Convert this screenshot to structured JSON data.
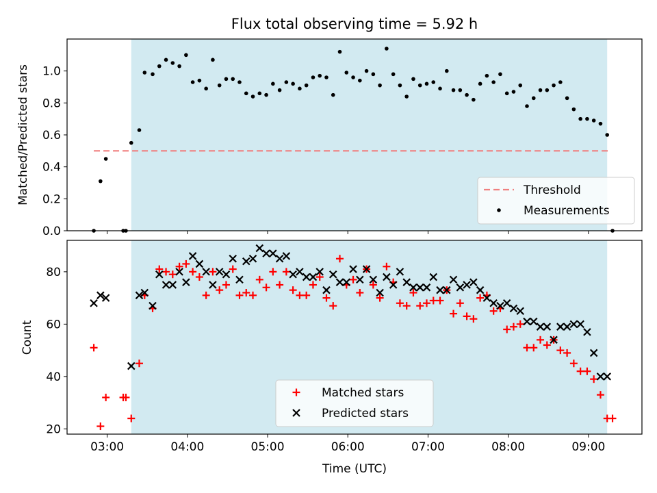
{
  "figure": {
    "title": "Flux total observing time = 5.92 h"
  },
  "colors": {
    "shade": "#add8e6",
    "threshold": "#f08080",
    "measurements": "#000000",
    "matched": "#ff0000",
    "predicted": "#000000"
  },
  "chart_data": [
    {
      "type": "scatter",
      "ylabel": "Matched/Predicted stars",
      "xlim": [
        "02:30",
        "09:40"
      ],
      "ylim": [
        0,
        1.2
      ],
      "x_ticks": [
        "03:00",
        "04:00",
        "05:00",
        "06:00",
        "07:00",
        "08:00",
        "09:00"
      ],
      "y_ticks": [
        "0.0",
        "0.2",
        "0.4",
        "0.6",
        "0.8",
        "1.0"
      ],
      "shaded_span": [
        "03:18",
        "09:14"
      ],
      "threshold": {
        "name": "Threshold",
        "value": 0.5,
        "x_range": [
          "02:50",
          "09:16"
        ]
      },
      "legend": {
        "position": "lower right",
        "entries": [
          "Threshold",
          "Measurements"
        ]
      },
      "series": [
        {
          "name": "Measurements",
          "x": [
            "02:50",
            "02:55",
            "02:59",
            "03:12",
            "03:14",
            "03:18",
            "03:24",
            "03:28",
            "03:34",
            "03:39",
            "03:44",
            "03:49",
            "03:54",
            "03:59",
            "04:04",
            "04:09",
            "04:14",
            "04:19",
            "04:24",
            "04:29",
            "04:34",
            "04:39",
            "04:44",
            "04:49",
            "04:54",
            "04:59",
            "05:04",
            "05:09",
            "05:14",
            "05:19",
            "05:24",
            "05:29",
            "05:34",
            "05:39",
            "05:44",
            "05:49",
            "05:54",
            "05:59",
            "06:04",
            "06:09",
            "06:14",
            "06:19",
            "06:24",
            "06:29",
            "06:34",
            "06:39",
            "06:44",
            "06:49",
            "06:54",
            "06:59",
            "07:04",
            "07:09",
            "07:14",
            "07:19",
            "07:24",
            "07:29",
            "07:34",
            "07:39",
            "07:44",
            "07:49",
            "07:54",
            "07:59",
            "08:04",
            "08:09",
            "08:14",
            "08:19",
            "08:24",
            "08:29",
            "08:34",
            "08:39",
            "08:44",
            "08:49",
            "08:54",
            "08:59",
            "09:04",
            "09:09",
            "09:14",
            "09:18"
          ],
          "y": [
            0.0,
            0.31,
            0.45,
            0.0,
            0.0,
            0.55,
            0.63,
            0.99,
            0.98,
            1.03,
            1.07,
            1.05,
            1.03,
            1.1,
            0.93,
            0.94,
            0.89,
            1.07,
            0.91,
            0.95,
            0.95,
            0.93,
            0.86,
            0.84,
            0.86,
            0.85,
            0.92,
            0.88,
            0.93,
            0.92,
            0.89,
            0.91,
            0.96,
            0.97,
            0.96,
            0.85,
            1.12,
            0.99,
            0.96,
            0.94,
            1.0,
            0.98,
            0.91,
            1.14,
            0.98,
            0.91,
            0.84,
            0.95,
            0.91,
            0.92,
            0.93,
            0.89,
            1.0,
            0.88,
            0.88,
            0.85,
            0.82,
            0.92,
            0.97,
            0.93,
            0.98,
            0.86,
            0.87,
            0.91,
            0.78,
            0.83,
            0.88,
            0.88,
            0.91,
            0.93,
            0.83,
            0.76,
            0.7,
            0.7,
            0.69,
            0.67,
            0.6,
            0.0
          ]
        }
      ]
    },
    {
      "type": "scatter",
      "xlabel": "Time (UTC)",
      "ylabel": "Count",
      "xlim": [
        "02:30",
        "09:40"
      ],
      "ylim": [
        18,
        92
      ],
      "x_ticks": [
        "03:00",
        "04:00",
        "05:00",
        "06:00",
        "07:00",
        "08:00",
        "09:00"
      ],
      "y_ticks": [
        "20",
        "40",
        "60",
        "80"
      ],
      "shaded_span": [
        "03:18",
        "09:14"
      ],
      "legend": {
        "position": "lower center",
        "entries": [
          "Matched stars",
          "Predicted stars"
        ]
      },
      "series": [
        {
          "name": "Matched stars",
          "marker": "plus",
          "x": [
            "02:50",
            "02:55",
            "02:59",
            "03:12",
            "03:14",
            "03:18",
            "03:24",
            "03:28",
            "03:34",
            "03:39",
            "03:44",
            "03:49",
            "03:54",
            "03:59",
            "04:04",
            "04:09",
            "04:14",
            "04:19",
            "04:24",
            "04:29",
            "04:34",
            "04:39",
            "04:44",
            "04:49",
            "04:54",
            "04:59",
            "05:04",
            "05:09",
            "05:14",
            "05:19",
            "05:24",
            "05:29",
            "05:34",
            "05:39",
            "05:44",
            "05:49",
            "05:54",
            "05:59",
            "06:04",
            "06:09",
            "06:14",
            "06:19",
            "06:24",
            "06:29",
            "06:34",
            "06:39",
            "06:44",
            "06:49",
            "06:54",
            "06:59",
            "07:04",
            "07:09",
            "07:14",
            "07:19",
            "07:24",
            "07:29",
            "07:34",
            "07:39",
            "07:44",
            "07:49",
            "07:54",
            "07:59",
            "08:04",
            "08:09",
            "08:14",
            "08:19",
            "08:24",
            "08:29",
            "08:34",
            "08:39",
            "08:44",
            "08:49",
            "08:54",
            "08:59",
            "09:04",
            "09:09",
            "09:14",
            "09:18"
          ],
          "y": [
            51,
            21,
            32,
            32,
            32,
            24,
            45,
            71,
            66,
            81,
            80,
            79,
            82,
            83,
            80,
            78,
            71,
            80,
            73,
            75,
            81,
            71,
            72,
            71,
            77,
            74,
            80,
            75,
            80,
            73,
            71,
            71,
            75,
            78,
            70,
            67,
            85,
            75,
            77,
            72,
            81,
            75,
            70,
            82,
            76,
            68,
            67,
            72,
            67,
            68,
            69,
            69,
            73,
            64,
            68,
            63,
            62,
            70,
            71,
            65,
            66,
            58,
            59,
            60,
            51,
            51,
            54,
            52,
            54,
            50,
            49,
            45,
            42,
            42,
            39,
            33,
            24,
            24
          ]
        },
        {
          "name": "Predicted stars",
          "marker": "x",
          "x": [
            "02:50",
            "02:55",
            "02:59",
            "03:18",
            "03:24",
            "03:28",
            "03:34",
            "03:39",
            "03:44",
            "03:49",
            "03:54",
            "03:59",
            "04:04",
            "04:09",
            "04:14",
            "04:19",
            "04:24",
            "04:29",
            "04:34",
            "04:39",
            "04:44",
            "04:49",
            "04:54",
            "04:59",
            "05:04",
            "05:09",
            "05:14",
            "05:19",
            "05:24",
            "05:29",
            "05:34",
            "05:39",
            "05:44",
            "05:49",
            "05:54",
            "05:59",
            "06:04",
            "06:09",
            "06:14",
            "06:19",
            "06:24",
            "06:29",
            "06:34",
            "06:39",
            "06:44",
            "06:49",
            "06:54",
            "06:59",
            "07:04",
            "07:09",
            "07:14",
            "07:19",
            "07:24",
            "07:29",
            "07:34",
            "07:39",
            "07:44",
            "07:49",
            "07:54",
            "07:59",
            "08:04",
            "08:09",
            "08:14",
            "08:19",
            "08:24",
            "08:29",
            "08:34",
            "08:39",
            "08:44",
            "08:49",
            "08:54",
            "08:59",
            "09:04",
            "09:09",
            "09:14"
          ],
          "y": [
            68,
            71,
            70,
            44,
            71,
            72,
            67,
            79,
            75,
            75,
            80,
            76,
            86,
            83,
            80,
            75,
            80,
            79,
            85,
            77,
            84,
            85,
            89,
            87,
            87,
            85,
            86,
            79,
            80,
            78,
            78,
            80,
            73,
            79,
            76,
            76,
            81,
            77,
            81,
            77,
            72,
            78,
            75,
            80,
            76,
            74,
            74,
            74,
            78,
            73,
            73,
            77,
            74,
            75,
            76,
            73,
            70,
            68,
            67,
            68,
            66,
            65,
            61,
            61,
            59,
            59,
            54,
            59,
            59,
            60,
            60,
            57,
            49,
            40,
            40
          ]
        }
      ]
    }
  ]
}
